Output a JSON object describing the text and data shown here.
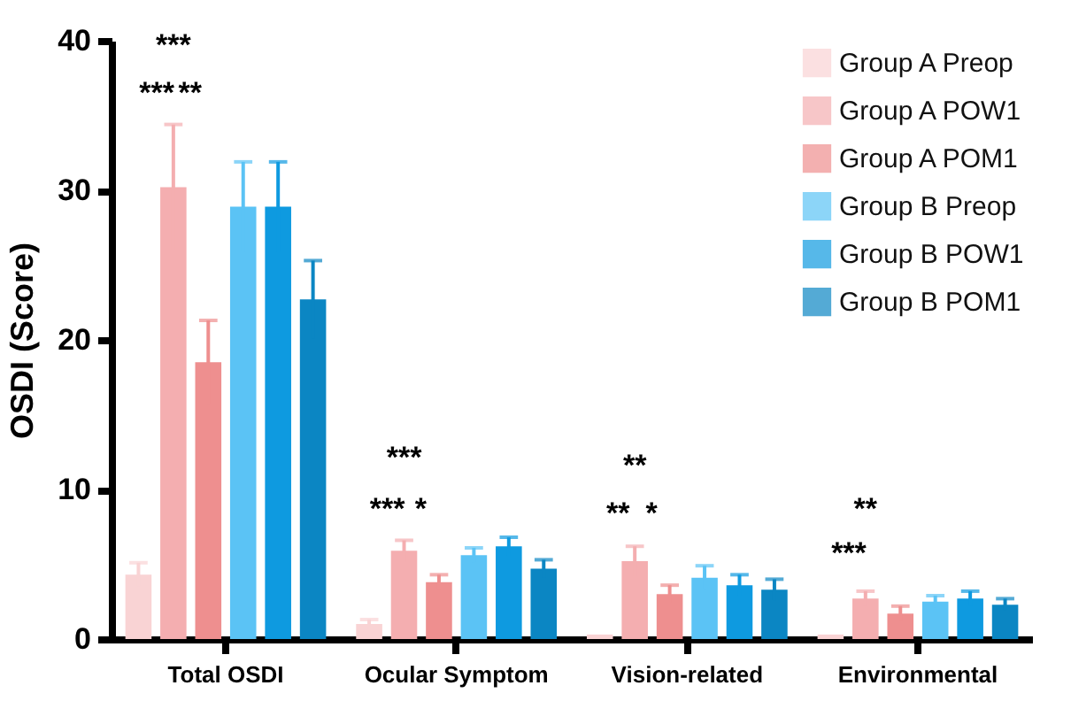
{
  "chart_data": {
    "type": "bar",
    "ylabel": "OSDI (Score)",
    "categories": [
      "Total OSDI",
      "Ocular Symptom",
      "Vision-related",
      "Environmental"
    ],
    "series": [
      {
        "name": "Group A Preop",
        "color": "#f9d3d4",
        "values": [
          4.3,
          1.0,
          0.3,
          0.3
        ],
        "errors": [
          0.8,
          0.3,
          null,
          null
        ]
      },
      {
        "name": "Group A POW1",
        "color": "#f4aeb0",
        "values": [
          30.2,
          5.9,
          5.2,
          2.7
        ],
        "errors": [
          4.2,
          0.7,
          1.0,
          0.5
        ]
      },
      {
        "name": "Group A POM1",
        "color": "#ee8f8f",
        "values": [
          18.5,
          3.8,
          3.0,
          1.7
        ],
        "errors": [
          2.8,
          0.5,
          0.6,
          0.5
        ]
      },
      {
        "name": "Group B Preop",
        "color": "#5bc3f5",
        "values": [
          28.9,
          5.6,
          4.1,
          2.5
        ],
        "errors": [
          3.0,
          0.5,
          0.8,
          0.4
        ]
      },
      {
        "name": "Group B POW1",
        "color": "#0e9ae0",
        "values": [
          28.9,
          6.2,
          3.6,
          2.7
        ],
        "errors": [
          3.0,
          0.6,
          0.7,
          0.5
        ]
      },
      {
        "name": "Group B POM1",
        "color": "#0b86c3",
        "values": [
          22.7,
          4.7,
          3.3,
          2.3
        ],
        "errors": [
          2.6,
          0.6,
          0.7,
          0.4
        ]
      }
    ],
    "ylim": [
      0,
      40
    ],
    "yticks": [
      0,
      10,
      20,
      30,
      40
    ],
    "grid": false,
    "legend": "top right",
    "annotations": [
      "***",
      "***",
      "**",
      "***",
      "***",
      "*",
      "**",
      "**",
      "*",
      "**",
      "***"
    ]
  }
}
